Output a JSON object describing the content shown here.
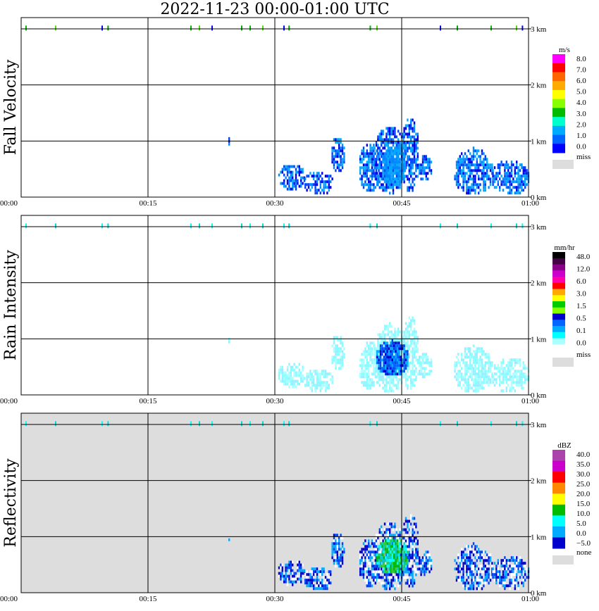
{
  "title": "2022-11-23   00:00-01:00 UTC",
  "chart_data": [
    {
      "type": "heatmap",
      "ylabel": "Fall Velocity",
      "background": "#ffffff",
      "x_ticks": [
        "00:00",
        "00:15",
        "00:30",
        "00:45",
        "01:00"
      ],
      "xlim_minutes": [
        0,
        60
      ],
      "y_ticks": [
        "0 km",
        "1 km",
        "2 km",
        "3 km"
      ],
      "ylim_km": [
        0,
        3.2
      ],
      "grid": true,
      "colorbar": {
        "unit": "m/s",
        "colors": [
          "#0000ff",
          "#0066ff",
          "#00aaff",
          "#00ffcc",
          "#00bb00",
          "#88ff00",
          "#ffff00",
          "#ffaa00",
          "#ff6600",
          "#ff0000",
          "#ff00ff"
        ],
        "labels": [
          "0.0",
          "1.0",
          "2.0",
          "3.0",
          "4.0",
          "5.0",
          "6.0",
          "7.0",
          "8.0"
        ],
        "missing_label": "miss",
        "missing_color": "#dddddd"
      },
      "echo_colors": [
        "#0000ee",
        "#0044ff",
        "#0088ff",
        "#00aaff"
      ],
      "echo_regions": [
        {
          "t0": 30.2,
          "t1": 33.5,
          "h0": 0.15,
          "h1": 0.62
        },
        {
          "t0": 33.3,
          "t1": 36.8,
          "h0": 0.05,
          "h1": 0.5
        },
        {
          "t0": 36.5,
          "t1": 38.2,
          "h0": 0.45,
          "h1": 1.1
        },
        {
          "t0": 39.8,
          "t1": 42.5,
          "h0": 0.1,
          "h1": 1.0
        },
        {
          "t0": 41.5,
          "t1": 45.5,
          "h0": 0.05,
          "h1": 1.3
        },
        {
          "t0": 44.8,
          "t1": 47.0,
          "h0": 0.1,
          "h1": 1.45
        },
        {
          "t0": 46.8,
          "t1": 48.5,
          "h0": 0.3,
          "h1": 0.8
        },
        {
          "t0": 51.0,
          "t1": 55.8,
          "h0": 0.05,
          "h1": 0.9
        },
        {
          "t0": 55.5,
          "t1": 60.0,
          "h0": 0.05,
          "h1": 0.7
        },
        {
          "t0": 24.3,
          "t1": 24.6,
          "h0": 0.95,
          "h1": 1.12
        }
      ],
      "core_colors": [
        "#00aaff",
        "#0088ff"
      ],
      "core_regions": [
        {
          "t0": 42.5,
          "t1": 45.5,
          "h0": 0.2,
          "h1": 0.95
        }
      ],
      "top_marks": [
        0.5,
        4,
        9.5,
        10.2,
        20,
        21,
        22.5,
        26,
        27,
        28.5,
        31,
        31.6,
        41.2,
        42,
        49.5,
        51.5,
        55.5,
        58.5,
        59.2
      ]
    },
    {
      "type": "heatmap",
      "ylabel": "Rain Intensity",
      "background": "#ffffff",
      "x_ticks": [
        "00:00",
        "00:15",
        "00:30",
        "00:45",
        "01:00"
      ],
      "xlim_minutes": [
        0,
        60
      ],
      "y_ticks": [
        "0 km",
        "1 km",
        "2 km",
        "3 km"
      ],
      "ylim_km": [
        0,
        3.2
      ],
      "grid": true,
      "colorbar": {
        "unit": "mm/hr",
        "colors": [
          "#ffffff",
          "#aaffff",
          "#00ffff",
          "#00aaff",
          "#0066ff",
          "#0000cc",
          "#88ff00",
          "#00cc00",
          "#ffff00",
          "#ffaa00",
          "#ff0000",
          "#ff00aa",
          "#cc00cc",
          "#880088",
          "#440044",
          "#000000"
        ],
        "labels": [
          "0.0",
          "0.1",
          "0.5",
          "1.5",
          "3.0",
          "6.0",
          "12.0",
          "48.0"
        ],
        "missing_label": "miss",
        "missing_color": "#dddddd"
      },
      "echo_colors": [
        "#aaffff",
        "#88ffff",
        "#99eeff"
      ],
      "echo_regions": [
        {
          "t0": 30.2,
          "t1": 33.5,
          "h0": 0.15,
          "h1": 0.62
        },
        {
          "t0": 33.3,
          "t1": 36.8,
          "h0": 0.05,
          "h1": 0.5
        },
        {
          "t0": 36.5,
          "t1": 38.2,
          "h0": 0.45,
          "h1": 1.1
        },
        {
          "t0": 39.8,
          "t1": 42.5,
          "h0": 0.1,
          "h1": 1.0
        },
        {
          "t0": 41.5,
          "t1": 45.5,
          "h0": 0.05,
          "h1": 1.3
        },
        {
          "t0": 44.8,
          "t1": 47.0,
          "h0": 0.1,
          "h1": 1.45
        },
        {
          "t0": 46.8,
          "t1": 48.5,
          "h0": 0.3,
          "h1": 0.8
        },
        {
          "t0": 51.0,
          "t1": 55.8,
          "h0": 0.05,
          "h1": 0.9
        },
        {
          "t0": 55.5,
          "t1": 60.0,
          "h0": 0.05,
          "h1": 0.7
        },
        {
          "t0": 24.3,
          "t1": 24.6,
          "h0": 0.95,
          "h1": 1.12
        }
      ],
      "core_colors": [
        "#00aaff",
        "#0066ff",
        "#0000cc",
        "#0044dd"
      ],
      "core_regions": [
        {
          "t0": 41.8,
          "t1": 45.8,
          "h0": 0.35,
          "h1": 1.0
        },
        {
          "t0": 42.8,
          "t1": 44.8,
          "h0": 0.5,
          "h1": 0.9
        }
      ],
      "top_marks": [
        0.5,
        4,
        9.5,
        10.2,
        20,
        21,
        22.5,
        26,
        27,
        28.5,
        31,
        31.6,
        41.2,
        42,
        49.5,
        51.5,
        55.5,
        58.5,
        59.2
      ]
    },
    {
      "type": "heatmap",
      "ylabel": "Reflectivity",
      "background": "#dddddd",
      "x_ticks": [
        "00:00",
        "00:15",
        "00:30",
        "00:45",
        "01:00"
      ],
      "xlim_minutes": [
        0,
        60
      ],
      "y_ticks": [
        "0 km",
        "1 km",
        "2 km",
        "3 km"
      ],
      "ylim_km": [
        0,
        3.2
      ],
      "grid": true,
      "colorbar": {
        "unit": "dBZ",
        "colors": [
          "#0000cc",
          "#00aaff",
          "#00ffff",
          "#00bb00",
          "#ffff00",
          "#ff8800",
          "#ff0000",
          "#cc00cc",
          "#aa44aa"
        ],
        "labels": [
          "−5.0",
          "0.0",
          "5.0",
          "10.0",
          "15.0",
          "20.0",
          "25.0",
          "30.0",
          "35.0",
          "40.0"
        ],
        "missing_label": "none",
        "missing_color": "#dddddd"
      },
      "echo_colors": [
        "#0000cc",
        "#00aaff",
        "#ffffff",
        "#0044ff"
      ],
      "echo_regions": [
        {
          "t0": 30.2,
          "t1": 33.5,
          "h0": 0.15,
          "h1": 0.62
        },
        {
          "t0": 33.3,
          "t1": 36.8,
          "h0": 0.05,
          "h1": 0.5
        },
        {
          "t0": 36.5,
          "t1": 38.2,
          "h0": 0.45,
          "h1": 1.1
        },
        {
          "t0": 39.8,
          "t1": 42.5,
          "h0": 0.1,
          "h1": 1.0
        },
        {
          "t0": 41.5,
          "t1": 45.5,
          "h0": 0.05,
          "h1": 1.3
        },
        {
          "t0": 44.8,
          "t1": 47.0,
          "h0": 0.1,
          "h1": 1.45
        },
        {
          "t0": 46.8,
          "t1": 48.5,
          "h0": 0.3,
          "h1": 0.8
        },
        {
          "t0": 51.0,
          "t1": 55.8,
          "h0": 0.05,
          "h1": 0.9
        },
        {
          "t0": 55.5,
          "t1": 60.0,
          "h0": 0.05,
          "h1": 0.7
        },
        {
          "t0": 24.3,
          "t1": 24.6,
          "h0": 0.95,
          "h1": 1.12
        }
      ],
      "core_colors": [
        "#00ffff",
        "#00cccc",
        "#00bb00",
        "#33cc33"
      ],
      "core_regions": [
        {
          "t0": 41.8,
          "t1": 45.8,
          "h0": 0.35,
          "h1": 1.0
        },
        {
          "t0": 43.0,
          "t1": 44.5,
          "h0": 0.4,
          "h1": 0.9
        }
      ],
      "top_marks": [
        0.5,
        4,
        9.5,
        10.2,
        20,
        21,
        22.5,
        26,
        27,
        28.5,
        31,
        31.6,
        41.2,
        42,
        49.5,
        51.5,
        55.5,
        58.5,
        59.2
      ]
    }
  ]
}
